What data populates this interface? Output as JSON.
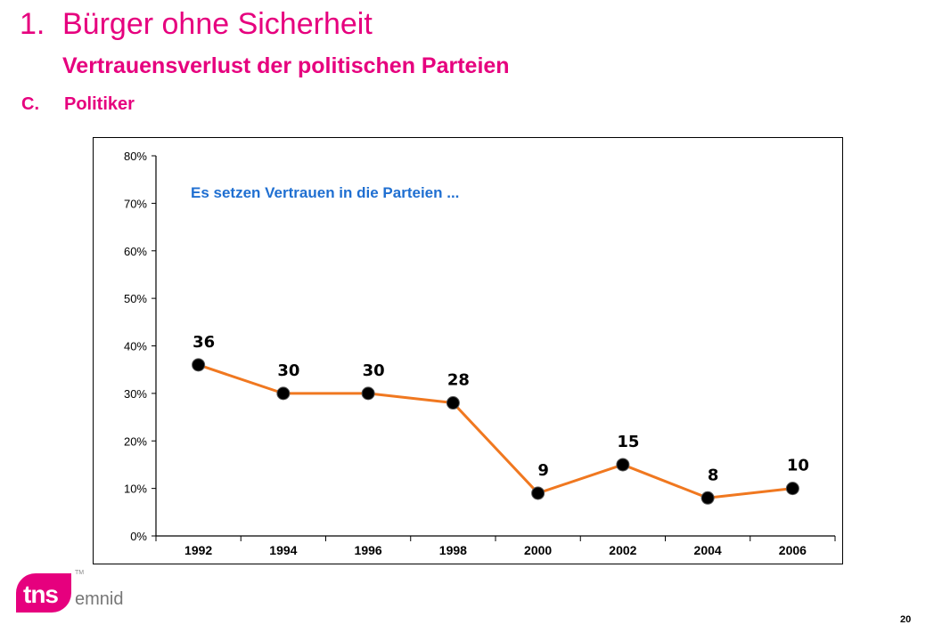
{
  "header": {
    "number": "1.",
    "title": "Bürger ohne Sicherheit",
    "subtitle": "Vertrauensverlust der politischen Parteien",
    "section_letter": "C.",
    "section_title": "Politiker"
  },
  "colors": {
    "accent": "#e6007e",
    "line": "#f07820",
    "annotation": "#1f6fd1"
  },
  "chart_data": {
    "type": "line",
    "categories": [
      "1992",
      "1994",
      "1996",
      "1998",
      "2000",
      "2002",
      "2004",
      "2006"
    ],
    "series": [
      {
        "values": [
          36,
          30,
          30,
          28,
          9,
          15,
          8,
          10
        ]
      }
    ],
    "data_labels": [
      "36",
      "30",
      "30",
      "28",
      "9",
      "15",
      "8",
      "10"
    ],
    "ylim": [
      0,
      80
    ],
    "yticks": [
      "0%",
      "10%",
      "20%",
      "30%",
      "40%",
      "50%",
      "60%",
      "70%",
      "80%"
    ],
    "annotation": "Es setzen Vertrauen in die Parteien ...",
    "grid": false
  },
  "footer": {
    "logo_tns": "tns",
    "logo_emnid": "emnid",
    "logo_tm": "TM",
    "page_number": "20"
  }
}
